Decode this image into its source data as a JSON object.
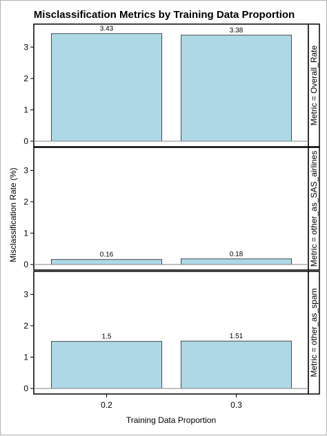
{
  "chart_data": {
    "type": "bar",
    "title": "Misclassification Metrics by Training Data Proportion",
    "xlabel": "Training Data Proportion",
    "ylabel": "Misclassification Rate (%)",
    "categories": [
      "0.2",
      "0.3"
    ],
    "ylim": [
      0,
      3.6
    ],
    "yticks": [
      0,
      1,
      2,
      3
    ],
    "grid": false,
    "panel_label_prefix": "Metric = ",
    "bar_color": "#add8e6",
    "bar_outline_color": "#4a4a4a",
    "panels": [
      {
        "name": "Overall_Rate",
        "values": [
          3.43,
          3.38
        ],
        "value_labels": [
          "3.43",
          "3.38"
        ]
      },
      {
        "name": "other_as_SAS_airlines",
        "values": [
          0.16,
          0.18
        ],
        "value_labels": [
          "0.16",
          "0.18"
        ]
      },
      {
        "name": "other_as_spam",
        "values": [
          1.5,
          1.51
        ],
        "value_labels": [
          "1.5",
          "1.51"
        ]
      }
    ]
  }
}
